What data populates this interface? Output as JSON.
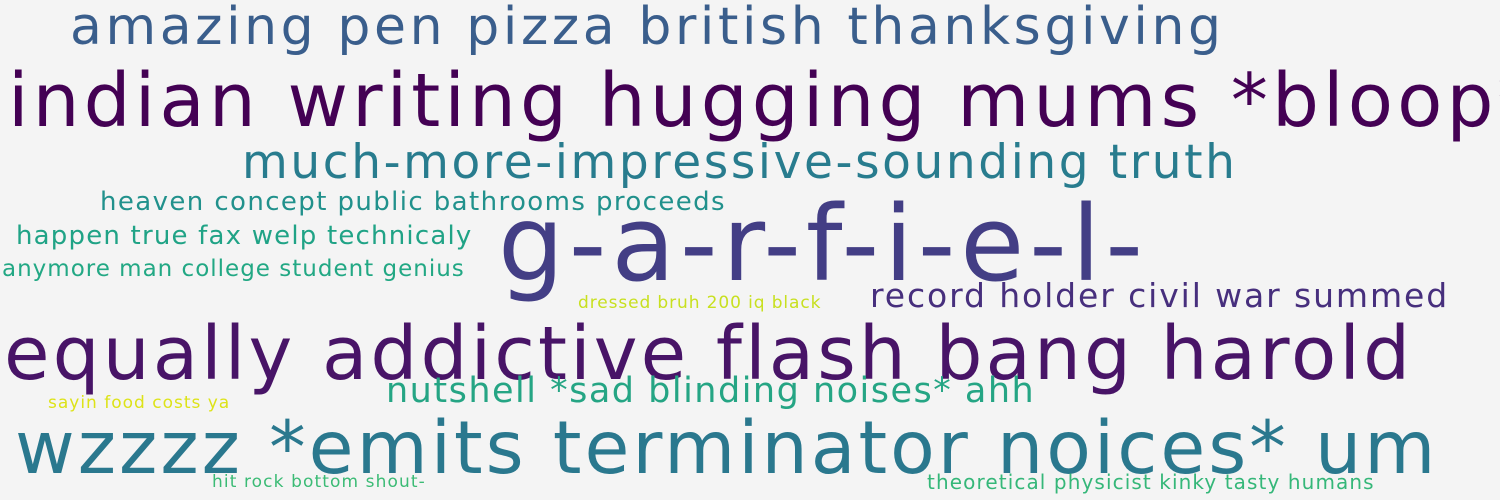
{
  "phrases": [
    {
      "text": "amazing pen pizza british thanksgiving",
      "color": "#3a5e8c"
    },
    {
      "text": "indian writing hugging mums *bloop*",
      "color": "#440154"
    },
    {
      "text": "much-more-impressive-sounding truth",
      "color": "#287c8e"
    },
    {
      "text": "heaven concept public bathrooms proceeds",
      "color": "#21918c"
    },
    {
      "text": "happen true fax welp technicaly",
      "color": "#20a386"
    },
    {
      "text": "anymore man college student genius",
      "color": "#22a884"
    },
    {
      "text": "g-a-r-f-i-e-l-",
      "color": "#433e85"
    },
    {
      "text": "dressed bruh 200 iq black",
      "color": "#c8e020"
    },
    {
      "text": "record holder civil war summed",
      "color": "#472f7d"
    },
    {
      "text": "equally addictive flash bang harold",
      "color": "#481467"
    },
    {
      "text": "nutshell *sad blinding noises* ahh",
      "color": "#25a584"
    },
    {
      "text": "sayin food costs ya",
      "color": "#dde318"
    },
    {
      "text": "wzzzz *emits terminator noices* um",
      "color": "#2a788e"
    },
    {
      "text": "hit rock bottom shout-",
      "color": "#3bbb75"
    },
    {
      "text": "theoretical physicist kinky tasty humans",
      "color": "#35b779"
    }
  ]
}
